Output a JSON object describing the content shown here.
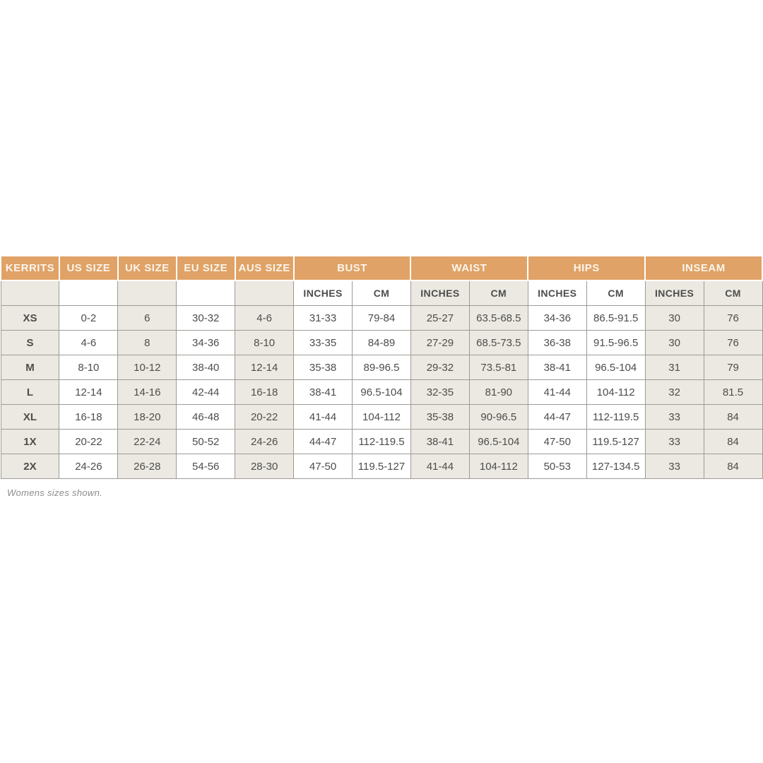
{
  "colors": {
    "orange": "#e0a266",
    "beige": "#ebe9e1",
    "border": "#9b9b96",
    "header_text": "#fbf5ec",
    "text": "#4d4d4d",
    "muted": "#8c8c8c"
  },
  "table": {
    "header_groups": [
      {
        "label": "KERRITS",
        "span": 1
      },
      {
        "label": "US SIZE",
        "span": 1
      },
      {
        "label": "UK SIZE",
        "span": 1
      },
      {
        "label": "EU SIZE",
        "span": 1
      },
      {
        "label": "AUS SIZE",
        "span": 1
      },
      {
        "label": "BUST",
        "span": 2
      },
      {
        "label": "WAIST",
        "span": 2
      },
      {
        "label": "HIPS",
        "span": 2
      },
      {
        "label": "INSEAM",
        "span": 2
      }
    ],
    "subheader": [
      "",
      "",
      "",
      "",
      "",
      "INCHES",
      "CM",
      "INCHES",
      "CM",
      "INCHES",
      "CM",
      "INCHES",
      "CM"
    ],
    "rows": [
      {
        "size": "XS",
        "cells": [
          "0-2",
          "6",
          "30-32",
          "4-6",
          "31-33",
          "79-84",
          "25-27",
          "63.5-68.5",
          "34-36",
          "86.5-91.5",
          "30",
          "76"
        ]
      },
      {
        "size": "S",
        "cells": [
          "4-6",
          "8",
          "34-36",
          "8-10",
          "33-35",
          "84-89",
          "27-29",
          "68.5-73.5",
          "36-38",
          "91.5-96.5",
          "30",
          "76"
        ]
      },
      {
        "size": "M",
        "cells": [
          "8-10",
          "10-12",
          "38-40",
          "12-14",
          "35-38",
          "89-96.5",
          "29-32",
          "73.5-81",
          "38-41",
          "96.5-104",
          "31",
          "79"
        ]
      },
      {
        "size": "L",
        "cells": [
          "12-14",
          "14-16",
          "42-44",
          "16-18",
          "38-41",
          "96.5-104",
          "32-35",
          "81-90",
          "41-44",
          "104-112",
          "32",
          "81.5"
        ]
      },
      {
        "size": "XL",
        "cells": [
          "16-18",
          "18-20",
          "46-48",
          "20-22",
          "41-44",
          "104-112",
          "35-38",
          "90-96.5",
          "44-47",
          "112-119.5",
          "33",
          "84"
        ]
      },
      {
        "size": "1X",
        "cells": [
          "20-22",
          "22-24",
          "50-52",
          "24-26",
          "44-47",
          "112-119.5",
          "38-41",
          "96.5-104",
          "47-50",
          "119.5-127",
          "33",
          "84"
        ]
      },
      {
        "size": "2X",
        "cells": [
          "24-26",
          "26-28",
          "54-56",
          "28-30",
          "47-50",
          "119.5-127",
          "41-44",
          "104-112",
          "50-53",
          "127-134.5",
          "33",
          "84"
        ]
      }
    ],
    "footnote": "Womens sizes shown."
  }
}
